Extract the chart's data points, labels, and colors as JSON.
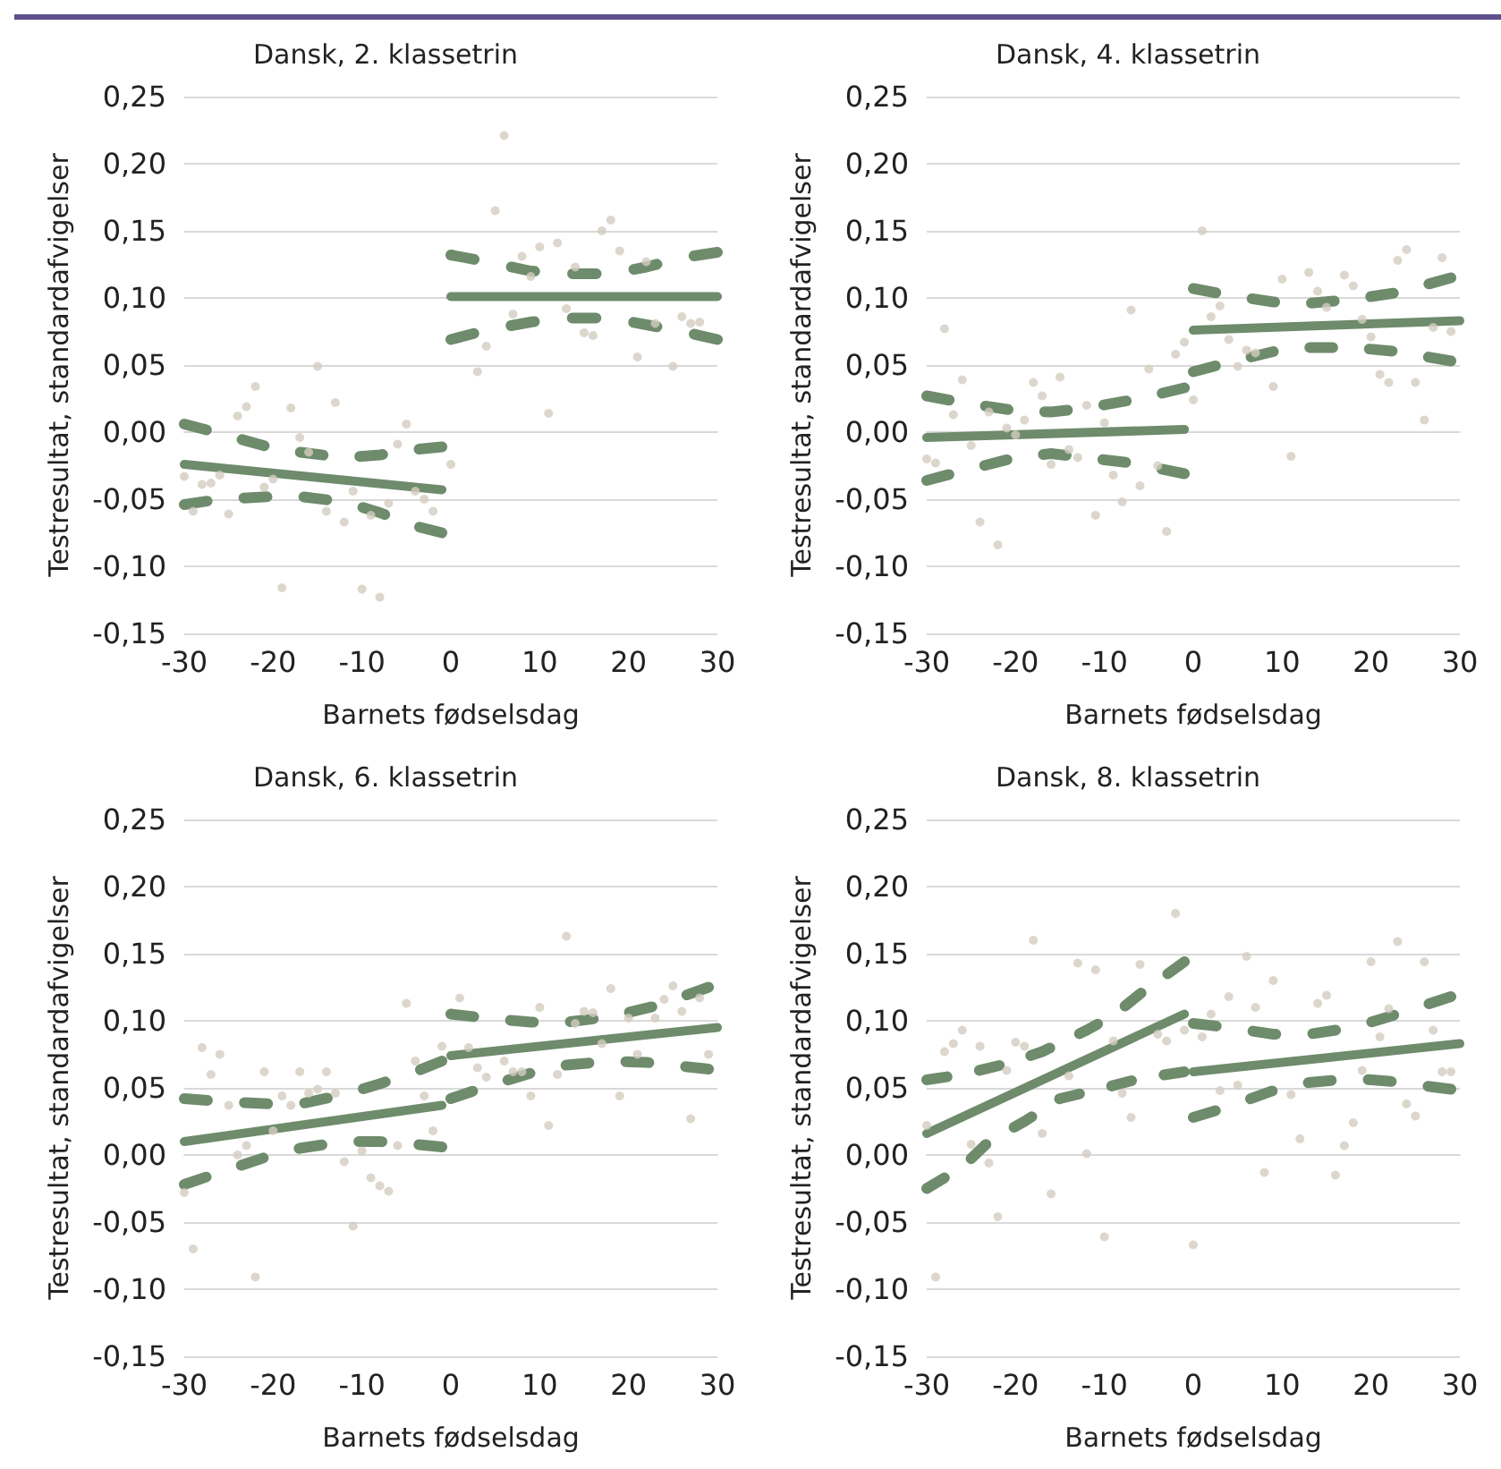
{
  "chart_data": [
    {
      "type": "scatter",
      "title": "Dansk, 2. klassetrin",
      "xlabel": "Barnets fødselsdag",
      "ylabel": "Testresultat, standardafvigelser",
      "xlim": [
        -30,
        30
      ],
      "xticks": [
        -30,
        -20,
        -10,
        0,
        10,
        20,
        30
      ],
      "ylim": [
        -0.15,
        0.25
      ],
      "yticks": [
        {
          "value": -0.15,
          "label": "-0,15"
        },
        {
          "value": -0.1,
          "label": "-0,10"
        },
        {
          "value": -0.05,
          "label": "-0,05"
        },
        {
          "value": 0,
          "label": "0,00"
        },
        {
          "value": 0.05,
          "label": "0,05"
        },
        {
          "value": 0.1,
          "label": "0,10"
        },
        {
          "value": 0.15,
          "label": "0,15"
        },
        {
          "value": 0.2,
          "label": "0,20"
        },
        {
          "value": 0.25,
          "label": "0,25"
        }
      ],
      "grid": "y",
      "series": [
        {
          "type": "scatter",
          "color": "#d3ccc0",
          "marker": "circle",
          "x": [
            -30,
            -29,
            -28,
            -27,
            -26,
            -25,
            -24,
            -23,
            -22,
            -21,
            -20,
            -19,
            -18,
            -17,
            -16,
            -15,
            -14,
            -13,
            -12,
            -11,
            -10,
            -9,
            -8,
            -7,
            -6,
            -5,
            -4,
            -3,
            -2,
            0,
            3,
            4,
            5,
            6,
            7,
            8,
            9,
            10,
            11,
            12,
            13,
            14,
            15,
            16,
            17,
            18,
            19,
            21,
            22,
            23,
            25,
            26,
            27,
            28
          ],
          "values": [
            -0.033,
            -0.059,
            -0.039,
            -0.038,
            -0.032,
            -0.061,
            0.012,
            0.019,
            0.034,
            -0.041,
            -0.035,
            -0.116,
            0.018,
            -0.004,
            -0.015,
            0.049,
            -0.059,
            0.022,
            -0.067,
            -0.044,
            -0.117,
            -0.062,
            -0.123,
            -0.053,
            -0.009,
            0.006,
            -0.044,
            -0.05,
            -0.059,
            -0.024,
            0.045,
            0.064,
            0.165,
            0.221,
            0.088,
            0.131,
            0.116,
            0.138,
            0.014,
            0.141,
            0.092,
            0.123,
            0.074,
            0.072,
            0.15,
            0.158,
            0.135,
            0.056,
            0.127,
            0.081,
            0.049,
            0.086,
            0.081,
            0.082
          ]
        },
        {
          "type": "line",
          "color": "#6e8b6c",
          "line_style": "solid",
          "marker": "none",
          "x": [
            -30,
            -1
          ],
          "values": [
            -0.024,
            -0.043
          ]
        },
        {
          "type": "line",
          "color": "#6e8b6c",
          "line_style": "solid",
          "marker": "none",
          "x": [
            0,
            30
          ],
          "values": [
            0.101,
            0.101
          ]
        },
        {
          "type": "line",
          "color": "#6e8b6c",
          "line_style": "dashed",
          "marker": "none",
          "x": [
            -30,
            -26,
            -20,
            -17,
            -12,
            -8,
            -4,
            -1
          ],
          "values": [
            0.006,
            -0.001,
            -0.012,
            -0.015,
            -0.019,
            -0.017,
            -0.013,
            -0.011
          ]
        },
        {
          "type": "line",
          "color": "#6e8b6c",
          "line_style": "dashed",
          "marker": "none",
          "x": [
            -30,
            -26,
            -20,
            -17,
            -12,
            -8,
            -4,
            -1
          ],
          "values": [
            -0.054,
            -0.05,
            -0.048,
            -0.048,
            -0.052,
            -0.06,
            -0.07,
            -0.075
          ]
        },
        {
          "type": "line",
          "color": "#6e8b6c",
          "line_style": "dashed",
          "marker": "none",
          "x": [
            0,
            4,
            9,
            13,
            18,
            22,
            26,
            30
          ],
          "values": [
            0.132,
            0.127,
            0.12,
            0.118,
            0.118,
            0.123,
            0.13,
            0.134
          ]
        },
        {
          "type": "line",
          "color": "#6e8b6c",
          "line_style": "dashed",
          "marker": "none",
          "x": [
            0,
            4,
            9,
            13,
            18,
            22,
            26,
            30
          ],
          "values": [
            0.069,
            0.076,
            0.082,
            0.085,
            0.085,
            0.08,
            0.075,
            0.069
          ]
        }
      ]
    },
    {
      "type": "scatter",
      "title": "Dansk, 4. klassetrin",
      "xlabel": "Barnets fødselsdag",
      "ylabel": "Testresultat, standardafvigelser",
      "xlim": [
        -30,
        30
      ],
      "xticks": [
        -30,
        -20,
        -10,
        0,
        10,
        20,
        30
      ],
      "ylim": [
        -0.15,
        0.25
      ],
      "yticks": [
        {
          "value": -0.15,
          "label": "-0,15"
        },
        {
          "value": -0.1,
          "label": "-0,10"
        },
        {
          "value": -0.05,
          "label": "-0,05"
        },
        {
          "value": 0,
          "label": "0,00"
        },
        {
          "value": 0.05,
          "label": "0,05"
        },
        {
          "value": 0.1,
          "label": "0,10"
        },
        {
          "value": 0.15,
          "label": "0,15"
        },
        {
          "value": 0.2,
          "label": "0,20"
        },
        {
          "value": 0.25,
          "label": "0,25"
        }
      ],
      "grid": "y",
      "series": [
        {
          "type": "scatter",
          "color": "#d3ccc0",
          "marker": "circle",
          "x": [
            -30,
            -29,
            -28,
            -27,
            -26,
            -25,
            -24,
            -23,
            -22,
            -21,
            -20,
            -19,
            -18,
            -17,
            -16,
            -15,
            -14,
            -13,
            -12,
            -11,
            -10,
            -9,
            -8,
            -7,
            -6,
            -5,
            -4,
            -3,
            -2,
            -1,
            0,
            1,
            2,
            3,
            4,
            5,
            6,
            7,
            9,
            10,
            11,
            13,
            14,
            15,
            17,
            18,
            19,
            20,
            21,
            22,
            23,
            24,
            25,
            26,
            27,
            28,
            29
          ],
          "values": [
            -0.02,
            -0.023,
            0.077,
            0.013,
            0.039,
            -0.01,
            -0.067,
            0.015,
            -0.084,
            0.003,
            -0.002,
            0.009,
            0.037,
            0.027,
            -0.024,
            0.041,
            -0.013,
            -0.019,
            0.02,
            -0.062,
            0.007,
            -0.032,
            -0.052,
            0.091,
            -0.04,
            0.047,
            -0.025,
            -0.074,
            0.058,
            0.067,
            0.024,
            0.15,
            0.086,
            0.094,
            0.069,
            0.049,
            0.061,
            0.059,
            0.034,
            0.114,
            -0.018,
            0.119,
            0.105,
            0.093,
            0.117,
            0.109,
            0.084,
            0.071,
            0.043,
            0.037,
            0.128,
            0.136,
            0.037,
            0.009,
            0.078,
            0.13,
            0.075
          ]
        },
        {
          "type": "line",
          "color": "#6e8b6c",
          "line_style": "solid",
          "marker": "none",
          "x": [
            -30,
            -1
          ],
          "values": [
            -0.004,
            0.002
          ]
        },
        {
          "type": "line",
          "color": "#6e8b6c",
          "line_style": "solid",
          "marker": "none",
          "x": [
            0,
            30
          ],
          "values": [
            0.076,
            0.083
          ]
        },
        {
          "type": "line",
          "color": "#6e8b6c",
          "line_style": "dashed",
          "marker": "none",
          "x": [
            -30,
            -26,
            -20,
            -16,
            -12,
            -6,
            -1
          ],
          "values": [
            0.027,
            0.022,
            0.016,
            0.015,
            0.018,
            0.025,
            0.033
          ]
        },
        {
          "type": "line",
          "color": "#6e8b6c",
          "line_style": "dashed",
          "marker": "none",
          "x": [
            -30,
            -26,
            -20,
            -16,
            -12,
            -7,
            -1
          ],
          "values": [
            -0.036,
            -0.029,
            -0.019,
            -0.016,
            -0.019,
            -0.023,
            -0.031
          ]
        },
        {
          "type": "line",
          "color": "#6e8b6c",
          "line_style": "dashed",
          "marker": "none",
          "x": [
            0,
            4,
            9,
            13,
            18,
            23,
            29
          ],
          "values": [
            0.107,
            0.102,
            0.097,
            0.096,
            0.099,
            0.104,
            0.115
          ]
        },
        {
          "type": "line",
          "color": "#6e8b6c",
          "line_style": "dashed",
          "marker": "none",
          "x": [
            0,
            4,
            9,
            13,
            18,
            23,
            29
          ],
          "values": [
            0.045,
            0.052,
            0.06,
            0.063,
            0.063,
            0.06,
            0.053
          ]
        }
      ]
    },
    {
      "type": "scatter",
      "title": "Dansk, 6. klassetrin",
      "xlabel": "Barnets fødselsdag",
      "ylabel": "Testresultat, standardafvigelser",
      "xlim": [
        -30,
        30
      ],
      "xticks": [
        -30,
        -20,
        -10,
        0,
        10,
        20,
        30
      ],
      "ylim": [
        -0.15,
        0.25
      ],
      "yticks": [
        {
          "value": -0.15,
          "label": "-0,15"
        },
        {
          "value": -0.1,
          "label": "-0,10"
        },
        {
          "value": -0.05,
          "label": "-0,05"
        },
        {
          "value": 0,
          "label": "0,00"
        },
        {
          "value": 0.05,
          "label": "0,05"
        },
        {
          "value": 0.1,
          "label": "0,10"
        },
        {
          "value": 0.15,
          "label": "0,15"
        },
        {
          "value": 0.2,
          "label": "0,20"
        },
        {
          "value": 0.25,
          "label": "0,25"
        }
      ],
      "grid": "y",
      "series": [
        {
          "type": "scatter",
          "color": "#d3ccc0",
          "marker": "circle",
          "x": [
            -30,
            -29,
            -28,
            -27,
            -26,
            -25,
            -24,
            -23,
            -22,
            -21,
            -20,
            -19,
            -18,
            -17,
            -16,
            -15,
            -14,
            -13,
            -12,
            -11,
            -10,
            -9,
            -8,
            -7,
            -6,
            -5,
            -4,
            -3,
            -2,
            -1,
            1,
            2,
            3,
            4,
            6,
            7,
            8,
            9,
            10,
            11,
            12,
            13,
            14,
            15,
            16,
            17,
            18,
            19,
            20,
            21,
            23,
            24,
            25,
            26,
            27,
            28,
            29
          ],
          "values": [
            -0.028,
            -0.07,
            0.08,
            0.06,
            0.075,
            0.037,
            0,
            0.007,
            -0.091,
            0.062,
            0.018,
            0.044,
            0.037,
            0.062,
            0.046,
            0.049,
            0.062,
            0.046,
            -0.005,
            -0.053,
            0.003,
            -0.017,
            -0.023,
            -0.027,
            0.007,
            0.113,
            0.07,
            0.044,
            0.018,
            0.081,
            0.117,
            0.08,
            0.065,
            0.058,
            0.07,
            0.062,
            0.062,
            0.044,
            0.11,
            0.022,
            0.06,
            0.163,
            0.098,
            0.107,
            0.106,
            0.083,
            0.124,
            0.044,
            0.102,
            0.075,
            0.102,
            0.116,
            0.126,
            0.107,
            0.027,
            0.117,
            0.075
          ]
        },
        {
          "type": "line",
          "color": "#6e8b6c",
          "line_style": "solid",
          "marker": "none",
          "x": [
            -30,
            -1
          ],
          "values": [
            0.01,
            0.037
          ]
        },
        {
          "type": "line",
          "color": "#6e8b6c",
          "line_style": "solid",
          "marker": "none",
          "x": [
            0,
            30
          ],
          "values": [
            0.074,
            0.095
          ]
        },
        {
          "type": "line",
          "color": "#6e8b6c",
          "line_style": "dashed",
          "marker": "none",
          "x": [
            -30,
            -26,
            -20,
            -17,
            -12,
            -8,
            -4,
            -1
          ],
          "values": [
            0.042,
            0.04,
            0.038,
            0.038,
            0.045,
            0.053,
            0.062,
            0.07
          ]
        },
        {
          "type": "line",
          "color": "#6e8b6c",
          "line_style": "dashed",
          "marker": "none",
          "x": [
            -30,
            -26,
            -21,
            -17,
            -12,
            -8,
            -4,
            -1
          ],
          "values": [
            -0.022,
            -0.013,
            -0.002,
            0.005,
            0.01,
            0.01,
            0.008,
            0.006
          ]
        },
        {
          "type": "line",
          "color": "#6e8b6c",
          "line_style": "dashed",
          "marker": "none",
          "x": [
            0,
            4,
            9,
            13,
            18,
            23,
            29
          ],
          "values": [
            0.105,
            0.102,
            0.099,
            0.099,
            0.103,
            0.111,
            0.125
          ]
        },
        {
          "type": "line",
          "color": "#6e8b6c",
          "line_style": "dashed",
          "marker": "none",
          "x": [
            0,
            4,
            9,
            13,
            18,
            22,
            29
          ],
          "values": [
            0.042,
            0.051,
            0.061,
            0.067,
            0.07,
            0.069,
            0.064
          ]
        }
      ]
    },
    {
      "type": "scatter",
      "title": "Dansk, 8. klassetrin",
      "xlabel": "Barnets fødselsdag",
      "ylabel": "Testresultat, standardafvigelser",
      "xlim": [
        -30,
        30
      ],
      "xticks": [
        -30,
        -20,
        -10,
        0,
        10,
        20,
        30
      ],
      "ylim": [
        -0.15,
        0.25
      ],
      "yticks": [
        {
          "value": -0.15,
          "label": "-0,15"
        },
        {
          "value": -0.1,
          "label": "-0,10"
        },
        {
          "value": -0.05,
          "label": "-0,05"
        },
        {
          "value": 0,
          "label": "0,00"
        },
        {
          "value": 0.05,
          "label": "0,05"
        },
        {
          "value": 0.1,
          "label": "0,10"
        },
        {
          "value": 0.15,
          "label": "0,15"
        },
        {
          "value": 0.2,
          "label": "0,20"
        },
        {
          "value": 0.25,
          "label": "0,25"
        }
      ],
      "grid": "y",
      "series": [
        {
          "type": "scatter",
          "color": "#d3ccc0",
          "marker": "circle",
          "x": [
            -30,
            -29,
            -28,
            -27,
            -26,
            -25,
            -24,
            -23,
            -22,
            -21,
            -20,
            -19,
            -18,
            -17,
            -16,
            -14,
            -13,
            -12,
            -11,
            -10,
            -9,
            -8,
            -7,
            -6,
            -4,
            -3,
            -2,
            -1,
            0,
            1,
            2,
            3,
            4,
            5,
            6,
            7,
            8,
            9,
            11,
            12,
            14,
            15,
            16,
            17,
            18,
            19,
            20,
            21,
            22,
            23,
            24,
            25,
            26,
            27,
            28,
            29
          ],
          "values": [
            0.022,
            -0.091,
            0.077,
            0.083,
            0.093,
            0.008,
            0.081,
            -0.006,
            -0.046,
            0.063,
            0.084,
            0.081,
            0.16,
            0.016,
            -0.029,
            0.059,
            0.143,
            0.001,
            0.138,
            -0.061,
            0.085,
            0.046,
            0.028,
            0.142,
            0.09,
            0.085,
            0.18,
            0.093,
            -0.067,
            0.088,
            0.105,
            0.048,
            0.118,
            0.052,
            0.148,
            0.11,
            -0.013,
            0.13,
            0.045,
            0.012,
            0.113,
            0.119,
            -0.015,
            0.007,
            0.024,
            0.063,
            0.144,
            0.088,
            0.109,
            0.159,
            0.038,
            0.029,
            0.144,
            0.093,
            0.062,
            0.062
          ]
        },
        {
          "type": "line",
          "color": "#6e8b6c",
          "line_style": "solid",
          "marker": "none",
          "x": [
            -30,
            -1
          ],
          "values": [
            0.016,
            0.105
          ]
        },
        {
          "type": "line",
          "color": "#6e8b6c",
          "line_style": "solid",
          "marker": "none",
          "x": [
            0,
            30
          ],
          "values": [
            0.062,
            0.083
          ]
        },
        {
          "type": "line",
          "color": "#6e8b6c",
          "line_style": "dashed",
          "marker": "none",
          "x": [
            -30,
            -26,
            -21,
            -17,
            -12,
            -9,
            -6,
            -1
          ],
          "values": [
            0.056,
            0.06,
            0.068,
            0.077,
            0.093,
            0.104,
            0.12,
            0.144
          ]
        },
        {
          "type": "line",
          "color": "#6e8b6c",
          "line_style": "dashed",
          "marker": "none",
          "x": [
            -30,
            -26,
            -23,
            -19,
            -15,
            -10,
            -6,
            -1
          ],
          "values": [
            -0.025,
            -0.009,
            0.01,
            0.025,
            0.042,
            0.05,
            0.057,
            0.062
          ]
        },
        {
          "type": "line",
          "color": "#6e8b6c",
          "line_style": "dashed",
          "marker": "none",
          "x": [
            0,
            4,
            9,
            13,
            18,
            22,
            29
          ],
          "values": [
            0.098,
            0.095,
            0.09,
            0.09,
            0.095,
            0.103,
            0.118
          ]
        },
        {
          "type": "line",
          "color": "#6e8b6c",
          "line_style": "dashed",
          "marker": "none",
          "x": [
            0,
            4,
            9,
            13,
            18,
            22,
            29
          ],
          "values": [
            0.028,
            0.036,
            0.048,
            0.054,
            0.057,
            0.055,
            0.049
          ]
        }
      ]
    }
  ]
}
